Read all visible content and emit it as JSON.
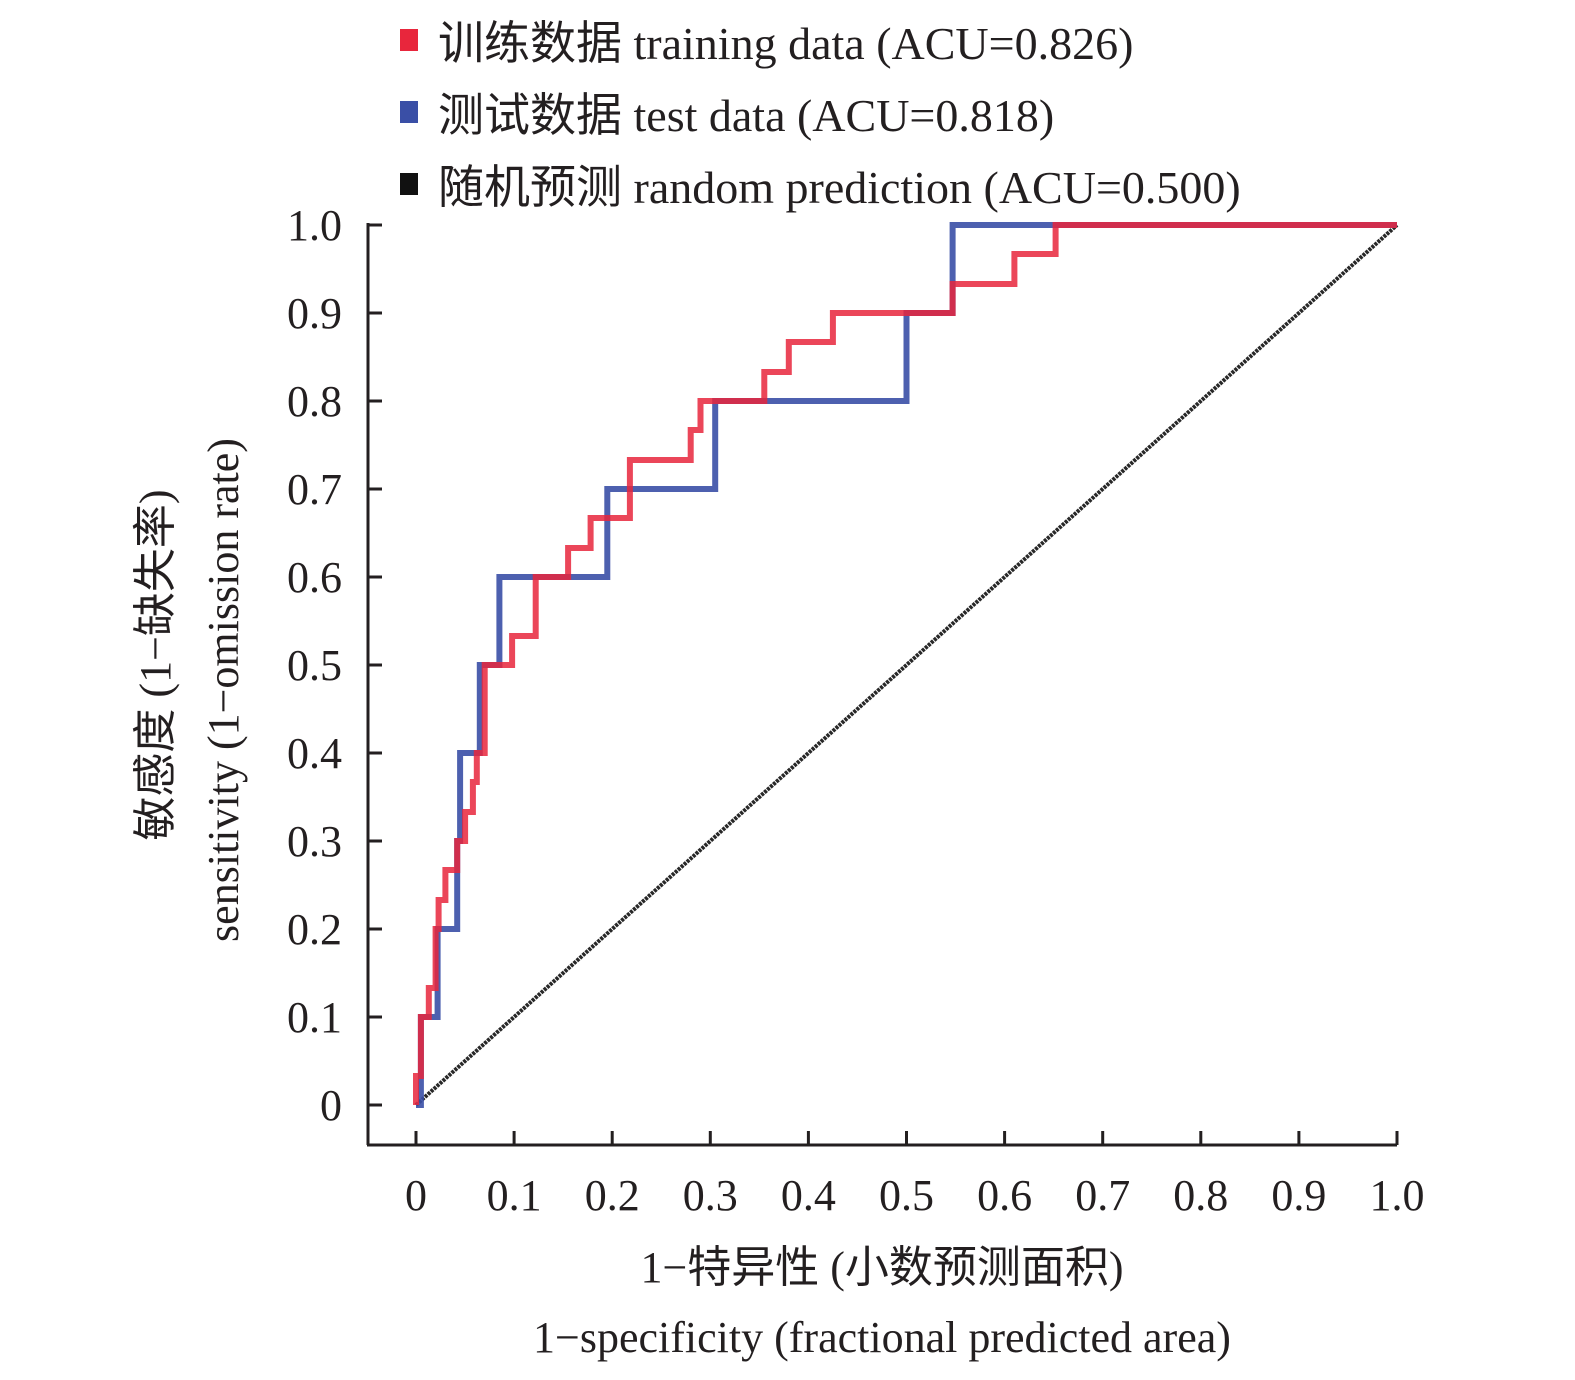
{
  "chart_data": {
    "type": "line",
    "title": "",
    "xlabel": [
      "1−特异性 (小数预测面积)",
      "1−specificity (fractional predicted area)"
    ],
    "ylabel": [
      "敏感度 (1−缺失率)",
      "sensitivity (1−omission rate)"
    ],
    "xlim": [
      0,
      1.0
    ],
    "ylim": [
      0,
      1.0
    ],
    "x_ticks": [
      "0",
      "0.1",
      "0.2",
      "0.3",
      "0.4",
      "0.5",
      "0.6",
      "0.7",
      "0.8",
      "0.9",
      "1.0"
    ],
    "y_ticks": [
      "0",
      "0.1",
      "0.2",
      "0.3",
      "0.4",
      "0.5",
      "0.6",
      "0.7",
      "0.8",
      "0.9",
      "1.0"
    ],
    "grid": false,
    "legend_position": "top",
    "series": [
      {
        "name": "训练数据 training data (ACU=0.826)",
        "color": "#e8263c",
        "step": true,
        "points": [
          [
            0,
            0
          ],
          [
            0,
            0.033
          ],
          [
            0.005,
            0.033
          ],
          [
            0.005,
            0.1
          ],
          [
            0.013,
            0.1
          ],
          [
            0.013,
            0.133
          ],
          [
            0.02,
            0.133
          ],
          [
            0.02,
            0.2
          ],
          [
            0.023,
            0.2
          ],
          [
            0.023,
            0.233
          ],
          [
            0.03,
            0.233
          ],
          [
            0.03,
            0.267
          ],
          [
            0.042,
            0.267
          ],
          [
            0.042,
            0.3
          ],
          [
            0.05,
            0.3
          ],
          [
            0.05,
            0.333
          ],
          [
            0.058,
            0.333
          ],
          [
            0.058,
            0.367
          ],
          [
            0.062,
            0.367
          ],
          [
            0.062,
            0.4
          ],
          [
            0.07,
            0.4
          ],
          [
            0.07,
            0.5
          ],
          [
            0.098,
            0.5
          ],
          [
            0.098,
            0.533
          ],
          [
            0.122,
            0.533
          ],
          [
            0.122,
            0.6
          ],
          [
            0.155,
            0.6
          ],
          [
            0.155,
            0.633
          ],
          [
            0.178,
            0.633
          ],
          [
            0.178,
            0.667
          ],
          [
            0.218,
            0.667
          ],
          [
            0.218,
            0.733
          ],
          [
            0.28,
            0.733
          ],
          [
            0.28,
            0.767
          ],
          [
            0.29,
            0.767
          ],
          [
            0.29,
            0.8
          ],
          [
            0.355,
            0.8
          ],
          [
            0.355,
            0.833
          ],
          [
            0.38,
            0.833
          ],
          [
            0.38,
            0.867
          ],
          [
            0.425,
            0.867
          ],
          [
            0.425,
            0.9
          ],
          [
            0.547,
            0.9
          ],
          [
            0.547,
            0.933
          ],
          [
            0.61,
            0.933
          ],
          [
            0.61,
            0.967
          ],
          [
            0.652,
            0.967
          ],
          [
            0.652,
            1.0
          ],
          [
            1.0,
            1.0
          ]
        ]
      },
      {
        "name": "测试数据 test data (ACU=0.818)",
        "color": "#3a4fa6",
        "step": true,
        "points": [
          [
            0,
            0
          ],
          [
            0.005,
            0
          ],
          [
            0.005,
            0.1
          ],
          [
            0.022,
            0.1
          ],
          [
            0.022,
            0.2
          ],
          [
            0.042,
            0.2
          ],
          [
            0.042,
            0.3
          ],
          [
            0.045,
            0.3
          ],
          [
            0.045,
            0.4
          ],
          [
            0.065,
            0.4
          ],
          [
            0.065,
            0.5
          ],
          [
            0.085,
            0.5
          ],
          [
            0.085,
            0.6
          ],
          [
            0.195,
            0.6
          ],
          [
            0.195,
            0.7
          ],
          [
            0.305,
            0.7
          ],
          [
            0.305,
            0.8
          ],
          [
            0.5,
            0.8
          ],
          [
            0.5,
            0.9
          ],
          [
            0.547,
            0.9
          ],
          [
            0.547,
            1.0
          ],
          [
            1.0,
            1.0
          ]
        ]
      },
      {
        "name": "随机预测 random prediction (ACU=0.500)",
        "color": "#111111",
        "step": false,
        "points": [
          [
            0,
            0
          ],
          [
            1.0,
            1.0
          ]
        ]
      }
    ]
  },
  "legend": [
    {
      "label": "训练数据 training data (ACU=0.826)",
      "color": "#e8263c"
    },
    {
      "label": "测试数据 test data (ACU=0.818)",
      "color": "#3a4fa6"
    },
    {
      "label": "随机预测 random prediction (ACU=0.500)",
      "color": "#111111"
    }
  ]
}
